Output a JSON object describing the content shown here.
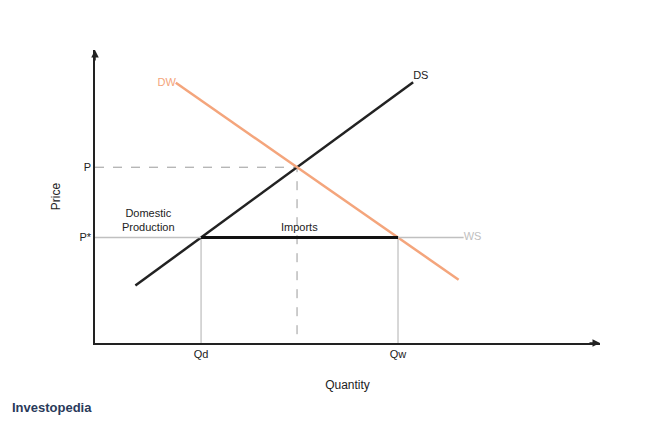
{
  "chart_data": {
    "type": "line",
    "x_label": "Quantity",
    "y_label": "Price",
    "xlim": [
      0,
      100
    ],
    "ylim": [
      0,
      100
    ],
    "xticks": [
      {
        "value": 21,
        "label": "Qd"
      },
      {
        "value": 60,
        "label": "Qw"
      }
    ],
    "yticks": [
      {
        "value": 36,
        "label": "P*"
      },
      {
        "value": 60,
        "label": "P"
      }
    ],
    "grid": false,
    "series": [
      {
        "name": "DS",
        "color": "#222222",
        "x": [
          8,
          63
        ],
        "values": [
          19.6,
          89
        ]
      },
      {
        "name": "DW",
        "color": "#f4a57c",
        "x": [
          16,
          72
        ],
        "values": [
          88.8,
          21.6
        ]
      },
      {
        "name": "WS",
        "color": "#c0c0c0",
        "x": [
          0,
          73
        ],
        "values": [
          36,
          36
        ]
      }
    ],
    "annotations": [
      "Domestic Production",
      "Imports"
    ],
    "source": "Investopedia"
  }
}
